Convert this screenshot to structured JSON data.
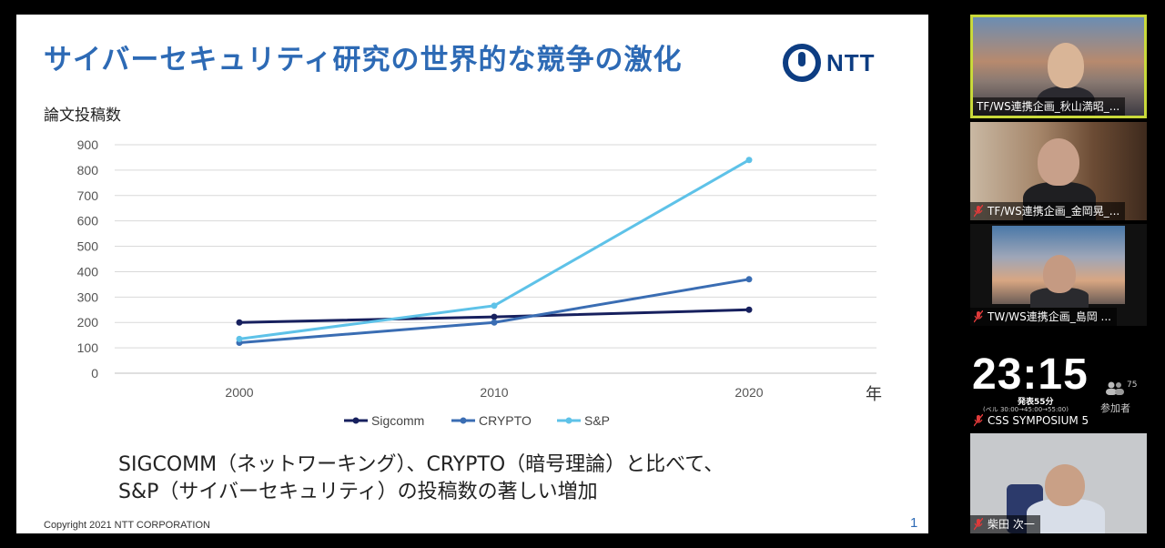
{
  "slide": {
    "title": "サイバーセキュリティ研究の世界的な競争の激化",
    "logo_text": "NTT",
    "caption_line1": "SIGCOMM（ネットワーキング）、CRYPTO（暗号理論）と比べて、",
    "caption_line2": "S&P（サイバーセキュリティ）の投稿数の著しい増加",
    "copyright": "Copyright 2021 NTT CORPORATION",
    "page_number": "1",
    "accent_color": "#2d6ab5"
  },
  "chart_data": {
    "type": "line",
    "ylabel": "論文投稿数",
    "xlabel": "年",
    "categories": [
      "2000",
      "2010",
      "2020"
    ],
    "ylim": [
      0,
      900
    ],
    "yticks": [
      0,
      100,
      200,
      300,
      400,
      500,
      600,
      700,
      800,
      900
    ],
    "grid": true,
    "legend": "bottom",
    "series": [
      {
        "name": "Sigcomm",
        "values": [
          200,
          222,
          250
        ],
        "color": "#17205e"
      },
      {
        "name": "CRYPTO",
        "values": [
          120,
          200,
          370
        ],
        "color": "#3a6db3"
      },
      {
        "name": "S&P",
        "values": [
          135,
          266,
          840
        ],
        "color": "#5ec2e8"
      }
    ]
  },
  "participants": [
    {
      "name": "TF/WS連携企画_秋山満昭_...",
      "muted": false,
      "active_speaker": true
    },
    {
      "name": "TF/WS連携企画_金岡晃_...",
      "muted": true
    },
    {
      "name": "TW/WS連携企画_島岡 ...",
      "muted": true
    },
    {
      "name": "CSS SYMPOSIUM 5",
      "muted": true
    },
    {
      "name": "柴田 次一",
      "muted": true
    }
  ],
  "timer": {
    "time": "23:15",
    "label": "発表55分",
    "schedule": "(ベル 30:00→45:00→55:00)",
    "participant_count": "75",
    "participant_label": "参加者"
  }
}
